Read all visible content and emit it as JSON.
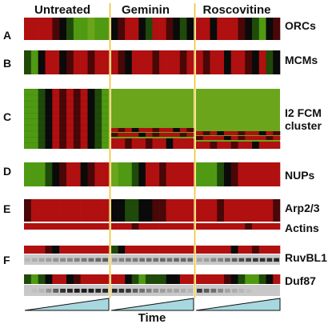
{
  "columns": [
    "Untreated",
    "Geminin",
    "Roscovitine"
  ],
  "panels": [
    {
      "letter": "A",
      "labels": [
        "ORCs"
      ]
    },
    {
      "letter": "B",
      "labels": [
        "MCMs"
      ]
    },
    {
      "letter": "C",
      "labels": [
        "I2 FCM",
        "cluster"
      ]
    },
    {
      "letter": "D",
      "labels": [
        "NUPs"
      ]
    },
    {
      "letter": "E",
      "labels": [
        "Arp2/3",
        "Actins"
      ]
    },
    {
      "letter": "F",
      "labels": [
        "RuvBL1",
        "Duf87"
      ]
    }
  ],
  "x_axis_label": "Time",
  "colors": {
    "red": "#b01010",
    "dark_red": "#4a0707",
    "black": "#0a0a0a",
    "dark_green": "#1f4a0a",
    "green": "#4f9a12",
    "bright_green": "#6aa51c",
    "divider": "#f0c020",
    "ramp_fill": "#a8d8df",
    "blot_bg": "#c8c8c8"
  }
}
